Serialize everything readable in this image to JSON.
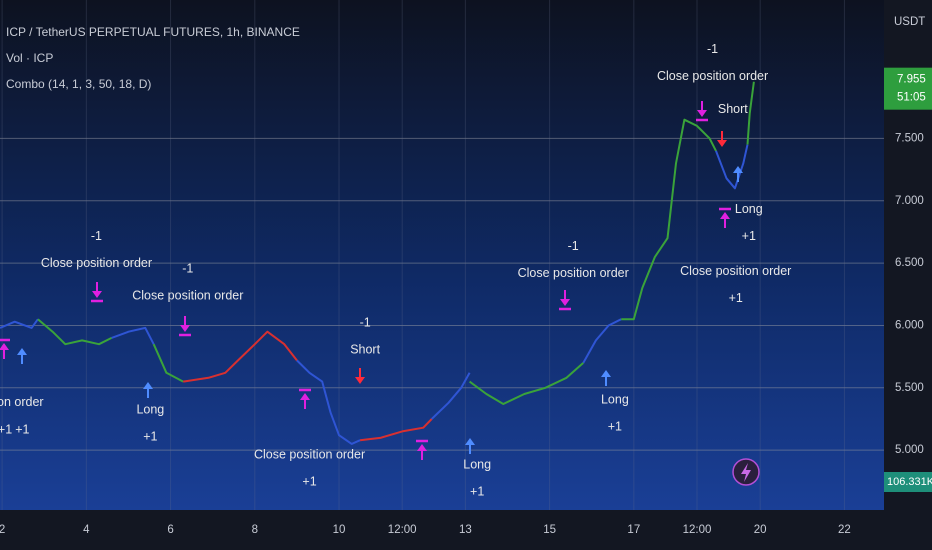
{
  "chart_data": {
    "type": "line",
    "legend": [
      "ICP / TetherUS PERPETUAL FUTURES, 1h, BINANCE",
      "Vol · ICP",
      "Combo (14, 1, 3, 50, 18, D)"
    ],
    "currency": "USDT",
    "last_price": 7.955,
    "countdown": "51:05",
    "volume_label": "106.331K",
    "xlim": [
      1.95,
      22.94
    ],
    "ylim": [
      4.52,
      8.61
    ],
    "xticks": [
      2,
      4,
      6,
      8,
      10,
      {
        "value": 11.5,
        "label": "12:00"
      },
      13,
      15,
      17,
      {
        "value": 18.5,
        "label": "12:00"
      },
      20,
      22
    ],
    "yticks": [
      {
        "value": 5,
        "label": "5.000"
      },
      {
        "value": 5.5,
        "label": "5.500"
      },
      {
        "value": 6,
        "label": "6.000"
      },
      {
        "value": 6.5,
        "label": "6.500"
      },
      {
        "value": 7,
        "label": "7.000"
      },
      {
        "value": 7.5,
        "label": "7.500"
      }
    ],
    "grid": true,
    "series": [
      {
        "color": "#2f55d4",
        "x": [
          1.95,
          2.3,
          2.7,
          2.85
        ],
        "values": [
          5.98,
          6.03,
          5.98,
          6.05
        ]
      },
      {
        "color": "#3aa33a",
        "x": [
          2.85,
          3.2,
          3.5,
          3.9,
          4.3,
          4.6
        ],
        "values": [
          6.05,
          5.95,
          5.85,
          5.88,
          5.85,
          5.9
        ]
      },
      {
        "color": "#2f55d4",
        "x": [
          4.6,
          5.0,
          5.4,
          5.6
        ],
        "values": [
          5.9,
          5.95,
          5.98,
          5.85
        ]
      },
      {
        "color": "#3aa33a",
        "x": [
          5.6,
          5.9,
          6.3
        ],
        "values": [
          5.85,
          5.62,
          5.55
        ]
      },
      {
        "color": "#d83030",
        "x": [
          6.3,
          6.9,
          7.3,
          7.6,
          8.0,
          8.3,
          8.7,
          9.0
        ],
        "values": [
          5.55,
          5.58,
          5.62,
          5.72,
          5.85,
          5.95,
          5.85,
          5.72
        ]
      },
      {
        "color": "#2f55d4",
        "x": [
          9.0,
          9.3,
          9.6,
          9.8,
          10.0,
          10.3,
          10.5
        ],
        "values": [
          5.72,
          5.62,
          5.55,
          5.3,
          5.12,
          5.05,
          5.08
        ]
      },
      {
        "color": "#d83030",
        "x": [
          10.5,
          11.0,
          11.5,
          12.0,
          12.2
        ],
        "values": [
          5.08,
          5.1,
          5.15,
          5.18,
          5.25
        ]
      },
      {
        "color": "#2f55d4",
        "x": [
          12.2,
          12.6,
          12.9,
          13.1
        ],
        "values": [
          5.25,
          5.38,
          5.5,
          5.62
        ]
      },
      {
        "color": "#3aa33a",
        "x": [
          13.1,
          13.5,
          13.9,
          14.4,
          14.9,
          15.4,
          15.8
        ],
        "values": [
          5.55,
          5.45,
          5.37,
          5.45,
          5.5,
          5.58,
          5.7
        ]
      },
      {
        "color": "#2f55d4",
        "x": [
          15.8,
          16.1,
          16.4,
          16.7
        ],
        "values": [
          5.7,
          5.88,
          6.0,
          6.05
        ]
      },
      {
        "color": "#3aa33a",
        "x": [
          16.7,
          17.0,
          17.2,
          17.5,
          17.8,
          18.0,
          18.2,
          18.5,
          18.8,
          18.95
        ],
        "values": [
          6.05,
          6.05,
          6.3,
          6.55,
          6.7,
          7.3,
          7.65,
          7.6,
          7.5,
          7.4
        ]
      },
      {
        "color": "#2f55d4",
        "x": [
          18.95,
          19.2,
          19.4,
          19.6,
          19.7
        ],
        "values": [
          7.4,
          7.18,
          7.1,
          7.3,
          7.45
        ]
      },
      {
        "color": "#3aa33a",
        "x": [
          19.7,
          19.75,
          19.85
        ],
        "values": [
          7.45,
          7.7,
          7.955
        ]
      }
    ],
    "annotations": [
      {
        "x": 4.24,
        "y": 6.71,
        "lines": [
          "-1",
          "Close position order"
        ]
      },
      {
        "x": 6.41,
        "y": 6.45,
        "lines": [
          "-1",
          "Close position order"
        ]
      },
      {
        "x": 10.62,
        "y": 6.02,
        "lines": [
          "-1",
          "Short"
        ]
      },
      {
        "x": 5.52,
        "y": 5.32,
        "lines": [
          "Long",
          "+1"
        ]
      },
      {
        "x": 9.3,
        "y": 4.96,
        "lines": [
          "Close position order",
          "+1"
        ]
      },
      {
        "x": 13.28,
        "y": 4.88,
        "lines": [
          "Long",
          "+1"
        ]
      },
      {
        "x": 15.56,
        "y": 6.63,
        "lines": [
          "-1",
          "Close position order"
        ]
      },
      {
        "x": 16.55,
        "y": 5.4,
        "lines": [
          "Long",
          "+1"
        ]
      },
      {
        "x": 18.87,
        "y": 8.21,
        "lines": [
          "-1",
          "Close position order"
        ]
      },
      {
        "x": 19.35,
        "y": 7.73,
        "lines": [
          "Short"
        ]
      },
      {
        "x": 19.73,
        "y": 6.93,
        "lines": [
          "Long",
          "+1"
        ]
      },
      {
        "x": 19.42,
        "y": 6.43,
        "lines": [
          "Close position order",
          "+1"
        ]
      },
      {
        "x": 2.25,
        "y": 5.38,
        "lines": [
          "sition order"
        ]
      },
      {
        "x": 2.07,
        "y": 5.16,
        "lines": [
          "+1"
        ]
      },
      {
        "x": 2.48,
        "y": 5.16,
        "lines": [
          "+1"
        ]
      }
    ]
  }
}
